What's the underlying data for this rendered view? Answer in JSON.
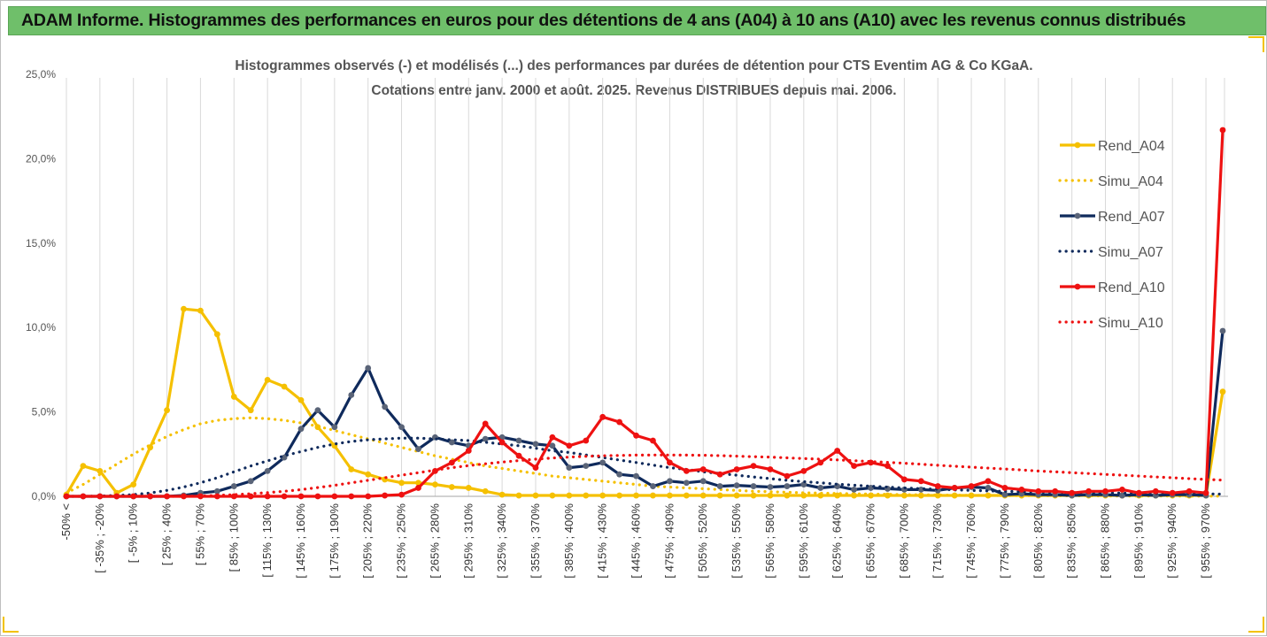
{
  "header": {
    "title": "ADAM Informe. Histogrammes des performances en euros pour des détentions de 4 ans (A04) à 10 ans (A10) avec les revenus connus distribués"
  },
  "chart_data": {
    "type": "line",
    "title_line1": "Histogrammes observés (-) et modélisés (...) des performances par durées de détention pour CTS Eventim AG & Co KGaA.",
    "title_line2": "Cotations entre janv. 2000 et août. 2025. Revenus DISTRIBUES depuis mai. 2006.",
    "xlabel": "",
    "ylabel": "",
    "ylim": [
      0,
      25
    ],
    "yticks": [
      "0,0%",
      "5,0%",
      "10,0%",
      "15,0%",
      "20,0%",
      "25,0%"
    ],
    "grid": "vertical",
    "legend_position": "right",
    "x_tick_labels": [
      "-50% <",
      "[ -35% ; -20%",
      "[ -5% ; 10%",
      "[ 25% ; 40%",
      "[ 55% ; 70%",
      "[ 85% ; 100%",
      "[ 115% ; 130%",
      "[ 145% ; 160%",
      "[ 175% ; 190%",
      "[ 205% ; 220%",
      "[ 235% ; 250%",
      "[ 265% ; 280%",
      "[ 295% ; 310%",
      "[ 325% ; 340%",
      "[ 355% ; 370%",
      "[ 385% ; 400%",
      "[ 415% ; 430%",
      "[ 445% ; 460%",
      "[ 475% ; 490%",
      "[ 505% ; 520%",
      "[ 535% ; 550%",
      "[ 565% ; 580%",
      "[ 595% ; 610%",
      "[ 625% ; 640%",
      "[ 655% ; 670%",
      "[ 685% ; 700%",
      "[ 715% ; 730%",
      "[ 745% ; 760%",
      "[ 775% ; 790%",
      "[ 805% ; 820%",
      "[ 835% ; 850%",
      "[ 865% ; 880%",
      "[ 895% ; 910%",
      "[ 925% ; 940%",
      "[ 955% ; 970%"
    ],
    "series": [
      {
        "name": "Rend_A04",
        "color": "#f5c000",
        "style": "solid",
        "values": [
          0.1,
          1.8,
          1.5,
          0.2,
          0.7,
          2.9,
          5.1,
          11.1,
          11.0,
          9.6,
          5.9,
          5.1,
          6.9,
          6.5,
          5.7,
          4.1,
          3.0,
          1.6,
          1.3,
          1.0,
          0.8,
          0.8,
          0.7,
          0.55,
          0.5,
          0.3,
          0.1,
          0.05,
          0.05,
          0.05,
          0.05,
          0.05,
          0.05,
          0.05,
          0.05,
          0.05,
          0.05,
          0.05,
          0.05,
          0.05,
          0.05,
          0.05,
          0.05,
          0.05,
          0.05,
          0.05,
          0.05,
          0.05,
          0.05,
          0.05,
          0.05,
          0.05,
          0.05,
          0.05,
          0.05,
          0.05,
          0.05,
          0.05,
          0.05,
          0.05,
          0.05,
          0.05,
          0.05,
          0.05,
          0.05,
          0.05,
          0.05,
          0.05,
          0.05,
          6.2
        ]
      },
      {
        "name": "Simu_A04",
        "color": "#f5c000",
        "style": "dotted",
        "values": [
          0.2,
          0.7,
          1.3,
          1.9,
          2.5,
          3.05,
          3.55,
          3.95,
          4.3,
          4.5,
          4.6,
          4.65,
          4.6,
          4.5,
          4.35,
          4.15,
          3.9,
          3.65,
          3.4,
          3.15,
          2.9,
          2.65,
          2.4,
          2.2,
          2.0,
          1.8,
          1.65,
          1.5,
          1.35,
          1.2,
          1.1,
          1.0,
          0.9,
          0.8,
          0.7,
          0.6,
          0.55,
          0.5,
          0.45,
          0.4,
          0.35,
          0.3,
          0.27,
          0.24,
          0.21,
          0.19,
          0.17,
          0.15,
          0.13,
          0.12,
          0.1,
          0.09,
          0.08,
          0.07,
          0.06,
          0.05,
          0.05,
          0.04,
          0.04,
          0.03,
          0.03,
          0.03,
          0.02,
          0.02,
          0.02,
          0.02,
          0.02,
          0.01,
          0.01,
          0.01
        ]
      },
      {
        "name": "Rend_A07",
        "color": "#0f2a5c",
        "style": "solid",
        "values": [
          0.0,
          0.0,
          0.0,
          0.0,
          0.0,
          0.0,
          0.0,
          0.05,
          0.2,
          0.3,
          0.6,
          0.9,
          1.5,
          2.3,
          4.0,
          5.1,
          4.1,
          6.0,
          7.6,
          5.3,
          4.1,
          2.8,
          3.5,
          3.2,
          3.0,
          3.4,
          3.5,
          3.3,
          3.1,
          3.0,
          1.7,
          1.8,
          2.0,
          1.3,
          1.2,
          0.6,
          0.9,
          0.8,
          0.9,
          0.6,
          0.65,
          0.6,
          0.55,
          0.6,
          0.7,
          0.5,
          0.6,
          0.4,
          0.5,
          0.45,
          0.4,
          0.4,
          0.35,
          0.5,
          0.55,
          0.5,
          0.1,
          0.15,
          0.1,
          0.1,
          0.05,
          0.1,
          0.1,
          0.05,
          0.1,
          0.05,
          0.1,
          0.1,
          0.05,
          9.8
        ]
      },
      {
        "name": "Simu_A07",
        "color": "#0f2a5c",
        "style": "dotted",
        "values": [
          0.0,
          0.0,
          0.02,
          0.05,
          0.1,
          0.2,
          0.35,
          0.55,
          0.8,
          1.1,
          1.45,
          1.8,
          2.1,
          2.4,
          2.65,
          2.9,
          3.1,
          3.25,
          3.35,
          3.4,
          3.45,
          3.45,
          3.4,
          3.35,
          3.3,
          3.2,
          3.1,
          3.0,
          2.85,
          2.7,
          2.6,
          2.45,
          2.3,
          2.15,
          2.0,
          1.85,
          1.7,
          1.6,
          1.45,
          1.35,
          1.25,
          1.15,
          1.05,
          0.95,
          0.87,
          0.8,
          0.72,
          0.66,
          0.6,
          0.55,
          0.5,
          0.45,
          0.42,
          0.38,
          0.35,
          0.32,
          0.3,
          0.28,
          0.26,
          0.24,
          0.22,
          0.21,
          0.2,
          0.19,
          0.18,
          0.17,
          0.16,
          0.15,
          0.14,
          0.13
        ]
      },
      {
        "name": "Rend_A10",
        "color": "#ee1111",
        "style": "solid",
        "values": [
          0.0,
          0.0,
          0.0,
          0.0,
          0.0,
          0.0,
          0.0,
          0.0,
          0.0,
          0.0,
          0.0,
          0.0,
          0.0,
          0.0,
          0.0,
          0.0,
          0.0,
          0.0,
          0.0,
          0.05,
          0.1,
          0.5,
          1.5,
          2.0,
          2.7,
          4.3,
          3.2,
          2.4,
          1.7,
          3.5,
          3.0,
          3.3,
          4.7,
          4.4,
          3.6,
          3.3,
          2.0,
          1.5,
          1.6,
          1.3,
          1.6,
          1.8,
          1.6,
          1.2,
          1.5,
          2.0,
          2.7,
          1.8,
          2.0,
          1.8,
          1.0,
          0.9,
          0.6,
          0.5,
          0.6,
          0.9,
          0.5,
          0.4,
          0.3,
          0.3,
          0.2,
          0.3,
          0.3,
          0.4,
          0.2,
          0.3,
          0.2,
          0.3,
          0.2,
          21.7
        ]
      },
      {
        "name": "Simu_A10",
        "color": "#ee1111",
        "style": "dotted",
        "values": [
          0.0,
          0.0,
          0.0,
          0.0,
          0.0,
          0.0,
          0.0,
          0.0,
          0.02,
          0.05,
          0.1,
          0.15,
          0.22,
          0.3,
          0.4,
          0.52,
          0.65,
          0.8,
          0.95,
          1.1,
          1.25,
          1.4,
          1.55,
          1.7,
          1.82,
          1.93,
          2.03,
          2.12,
          2.2,
          2.27,
          2.32,
          2.37,
          2.4,
          2.42,
          2.44,
          2.45,
          2.45,
          2.44,
          2.43,
          2.41,
          2.38,
          2.35,
          2.32,
          2.28,
          2.24,
          2.2,
          2.16,
          2.11,
          2.06,
          2.01,
          1.96,
          1.9,
          1.84,
          1.78,
          1.73,
          1.67,
          1.62,
          1.56,
          1.5,
          1.45,
          1.4,
          1.35,
          1.3,
          1.25,
          1.2,
          1.15,
          1.1,
          1.05,
          1.0,
          0.96
        ]
      }
    ]
  }
}
